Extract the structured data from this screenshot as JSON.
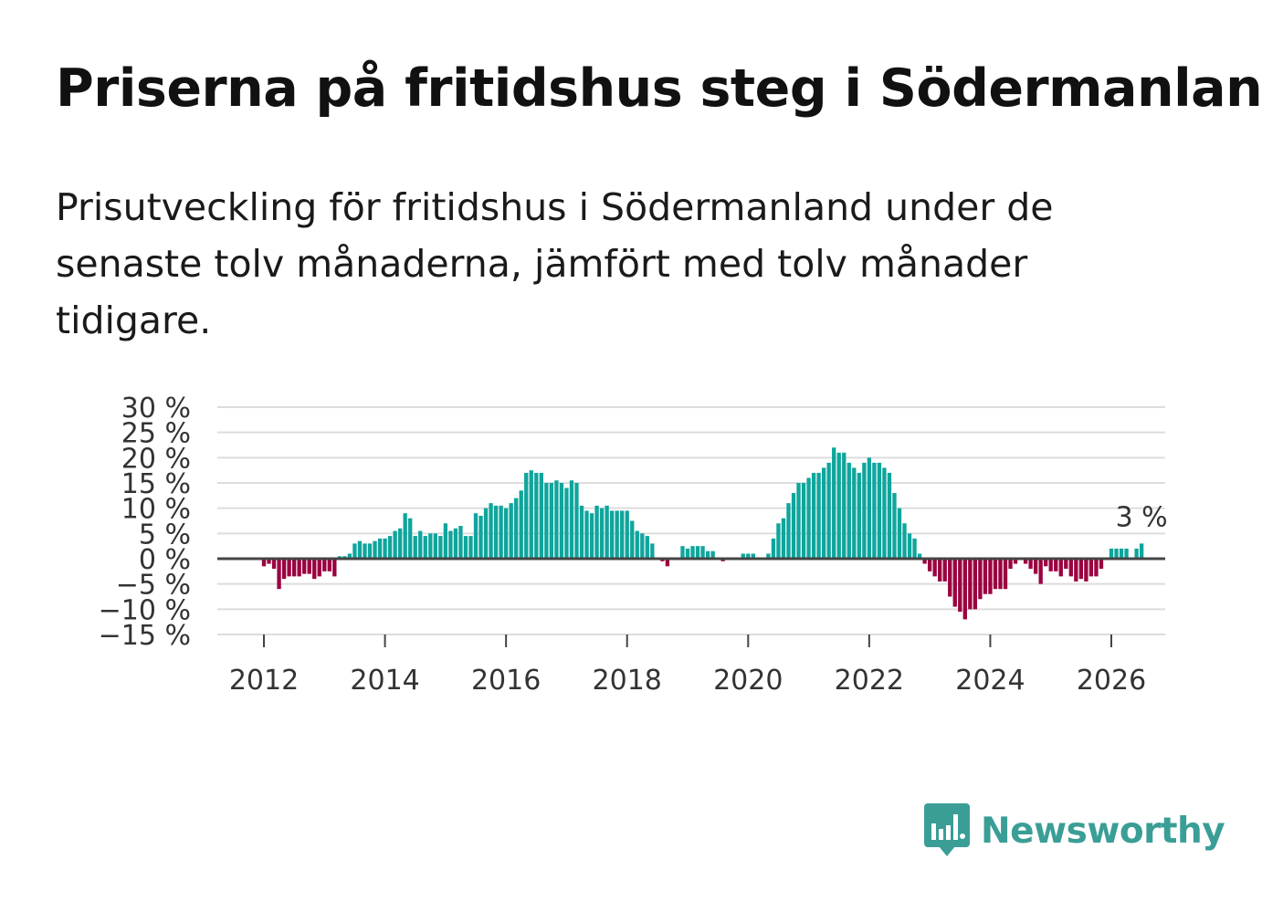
{
  "header": {
    "title": "Priserna på fritidshus steg i Södermanland",
    "subtitle": "Prisutveckling för fritidshus i Södermanland under de senaste tolv månaderna, jämfört med tolv månader tidigare."
  },
  "brand": {
    "name": "Newsworthy",
    "color": "#3a9e96"
  },
  "colors": {
    "positive": "#0fa59c",
    "negative": "#9b0040",
    "grid": "#dddddd",
    "zero": "#444444"
  },
  "chart_data": {
    "type": "bar",
    "title": "Priserna på fritidshus steg i Södermanland",
    "xlabel": "",
    "ylabel": "",
    "ylim": [
      -15,
      30
    ],
    "y_ticks": [
      "30 %",
      "25 %",
      "20 %",
      "15 %",
      "10 %",
      "5 %",
      "0 %",
      "−5 %",
      "−10 %",
      "−15 %"
    ],
    "x_ticks": [
      "2012",
      "2014",
      "2016",
      "2018",
      "2020",
      "2022",
      "2024",
      "2026"
    ],
    "start": "2011-11",
    "unit": "%",
    "last_label": "3 %",
    "values": [
      0,
      0,
      -1.5,
      -1,
      -2,
      -6,
      -4,
      -3.5,
      -3.5,
      -3.5,
      -3,
      -3,
      -4,
      -3.5,
      -2.5,
      -2.5,
      -3.5,
      0.5,
      0.5,
      1,
      3,
      3.5,
      3,
      3,
      3.5,
      4,
      4,
      4.5,
      5.5,
      6,
      9,
      8,
      4.5,
      5.5,
      4.5,
      5,
      5,
      4.5,
      7,
      5.5,
      6,
      6.5,
      4.5,
      4.5,
      9,
      8.5,
      10,
      11,
      10.5,
      10.5,
      10,
      11,
      12,
      13.5,
      17,
      17.5,
      17,
      17,
      15,
      15,
      15.5,
      15,
      14,
      15.5,
      15,
      10.5,
      9.5,
      9,
      10.5,
      10,
      10.5,
      9.5,
      9.5,
      9.5,
      9.5,
      7.5,
      5.5,
      5,
      4.5,
      3,
      0,
      -0.5,
      -1.5,
      0,
      0,
      2.5,
      2,
      2.5,
      2.5,
      2.5,
      1.5,
      1.5,
      0,
      -0.5,
      0,
      0,
      0,
      1,
      1,
      1,
      0,
      0,
      1,
      4,
      7,
      8,
      11,
      13,
      15,
      15,
      16,
      17,
      17,
      18,
      19,
      22,
      21,
      21,
      19,
      18,
      17,
      19,
      20,
      19,
      19,
      18,
      17,
      13,
      10,
      7,
      5,
      4,
      1,
      -1,
      -2.5,
      -3.5,
      -4.5,
      -4.5,
      -7.5,
      -9.5,
      -10.5,
      -12,
      -10,
      -10,
      -8,
      -7,
      -7,
      -6,
      -6,
      -6,
      -2,
      -1,
      0,
      -1,
      -2,
      -3,
      -5,
      -1.5,
      -2.5,
      -2.5,
      -3.5,
      -2,
      -3.5,
      -4.5,
      -4,
      -4.5,
      -3.5,
      -3.5,
      -2,
      0,
      2,
      2,
      2,
      2,
      0,
      2,
      3
    ]
  }
}
